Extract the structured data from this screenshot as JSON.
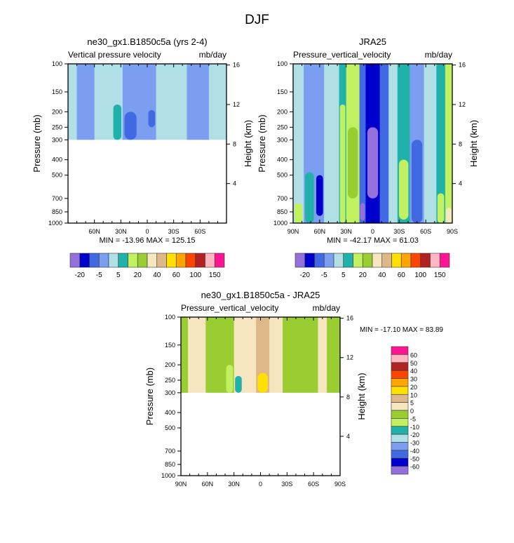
{
  "figure": {
    "title": "DJF"
  },
  "colors": {
    "levels_palette": [
      "#9370DB",
      "#0000CD",
      "#4169E1",
      "#7B9EF0",
      "#B0E0E6",
      "#20B2AA",
      "#C1F060",
      "#9ACD32",
      "#F5E6C0",
      "#DEB887",
      "#FFE000",
      "#FFA500",
      "#FF4500",
      "#B22222",
      "#FFB6C1",
      "#FF1493"
    ]
  },
  "chart_data": [
    {
      "type": "heatmap",
      "id": "model",
      "title": "ne30_gx1.B1850c5a (yrs 2-4)",
      "left_label": "Vertical pressure velocity",
      "right_label": "mb/day",
      "xlabel": "",
      "ylabel": "Pressure (mb)",
      "ylabel_right": "Height (km)",
      "x_ticks": [
        "60N",
        "30N",
        "0",
        "30S",
        "60S"
      ],
      "x_tick_values": [
        60,
        30,
        0,
        -30,
        -60
      ],
      "x_range": [
        90,
        -90
      ],
      "y_ticks": [
        "100",
        "150",
        "200",
        "250",
        "300",
        "400",
        "500",
        "700",
        "850",
        "1000"
      ],
      "y_tick_values": [
        100,
        150,
        200,
        250,
        300,
        400,
        500,
        700,
        850,
        1000
      ],
      "y_range": [
        100,
        1000
      ],
      "y_scale": "log",
      "y_right_ticks": [
        "16",
        "12",
        "8",
        "4"
      ],
      "y_right_values": [
        16,
        12,
        8,
        4
      ],
      "data_bottom_pressure": 300,
      "stats": "MIN = -13.96  MAX = 125.15",
      "colorbar": {
        "orientation": "horizontal",
        "labels": [
          "-20",
          "-5",
          "5",
          "20",
          "40",
          "60",
          "100",
          "150"
        ]
      },
      "bands": [
        {
          "x0": 90,
          "x1": 80,
          "level": 4
        },
        {
          "x0": 80,
          "x1": 60,
          "level": 3
        },
        {
          "x0": 60,
          "x1": 40,
          "level": 4
        },
        {
          "x0": 40,
          "x1": 28,
          "level": 4,
          "blob": {
            "level": 5,
            "pTop": 180,
            "pBot": 300
          }
        },
        {
          "x0": 28,
          "x1": 10,
          "level": 3,
          "blob": {
            "level": 2,
            "pTop": 200,
            "pBot": 300
          }
        },
        {
          "x0": 10,
          "x1": 0,
          "level": 3
        },
        {
          "x0": 0,
          "x1": -10,
          "level": 3,
          "blob": {
            "level": 2,
            "pTop": 195,
            "pBot": 250
          }
        },
        {
          "x0": -10,
          "x1": -45,
          "level": 4
        },
        {
          "x0": -45,
          "x1": -70,
          "level": 3
        },
        {
          "x0": -70,
          "x1": -90,
          "level": 4
        }
      ]
    },
    {
      "type": "heatmap",
      "id": "obs",
      "title": "JRA25",
      "left_label": "Pressure_vertical_velocity",
      "right_label": "mb/day",
      "xlabel": "",
      "ylabel": "Pressure (mb)",
      "ylabel_right": "Height (km)",
      "x_ticks": [
        "90N",
        "60N",
        "30N",
        "0",
        "30S",
        "60S",
        "90S"
      ],
      "x_tick_values": [
        90,
        60,
        30,
        0,
        -30,
        -60,
        -90
      ],
      "x_range": [
        90,
        -90
      ],
      "y_ticks": [
        "100",
        "150",
        "200",
        "250",
        "300",
        "400",
        "500",
        "700",
        "850",
        "1000"
      ],
      "y_tick_values": [
        100,
        150,
        200,
        250,
        300,
        400,
        500,
        700,
        850,
        1000
      ],
      "y_range": [
        100,
        1000
      ],
      "y_scale": "log",
      "y_right_ticks": [
        "16",
        "12",
        "8",
        "4"
      ],
      "y_right_values": [
        16,
        12,
        8,
        4
      ],
      "data_bottom_pressure": 1000,
      "stats": "MIN = -42.17  MAX =  61.03",
      "colorbar": {
        "orientation": "horizontal",
        "labels": [
          "-20",
          "-5",
          "5",
          "20",
          "40",
          "60",
          "100",
          "150"
        ]
      },
      "bands": [
        {
          "x0": 90,
          "x1": 78,
          "level": 4,
          "blob": {
            "level": 6,
            "pTop": 750,
            "pBot": 1000
          }
        },
        {
          "x0": 78,
          "x1": 65,
          "level": 3,
          "blob": {
            "level": 5,
            "pTop": 480,
            "pBot": 1000
          }
        },
        {
          "x0": 65,
          "x1": 55,
          "level": 3,
          "blob": {
            "level": 1,
            "pTop": 500,
            "pBot": 900
          }
        },
        {
          "x0": 55,
          "x1": 38,
          "level": 4
        },
        {
          "x0": 38,
          "x1": 30,
          "level": 5,
          "blob": {
            "level": 6,
            "pTop": 180,
            "pBot": 1000
          }
        },
        {
          "x0": 30,
          "x1": 15,
          "level": 6,
          "blob": {
            "level": 7,
            "pTop": 250,
            "pBot": 700
          }
        },
        {
          "x0": 15,
          "x1": 8,
          "level": 2,
          "blob": {
            "level": 0,
            "pTop": 750,
            "pBot": 960
          }
        },
        {
          "x0": 8,
          "x1": -8,
          "level": 1,
          "blob": {
            "level": 0,
            "pTop": 250,
            "pBot": 700
          }
        },
        {
          "x0": -8,
          "x1": -18,
          "level": 2
        },
        {
          "x0": -18,
          "x1": -28,
          "level": 4
        },
        {
          "x0": -28,
          "x1": -42,
          "level": 5,
          "blob": {
            "level": 6,
            "pTop": 400,
            "pBot": 950
          }
        },
        {
          "x0": -42,
          "x1": -58,
          "level": 3,
          "blob": {
            "level": 2,
            "pTop": 300,
            "pBot": 1000
          }
        },
        {
          "x0": -58,
          "x1": -72,
          "level": 4
        },
        {
          "x0": -72,
          "x1": -82,
          "level": 5,
          "blob": {
            "level": 6,
            "pTop": 650,
            "pBot": 1000
          }
        },
        {
          "x0": -82,
          "x1": -90,
          "level": 6,
          "blob": {
            "level": 8,
            "pTop": 800,
            "pBot": 1000
          }
        }
      ]
    },
    {
      "type": "heatmap",
      "id": "diff",
      "title": "ne30_gx1.B1850c5a - JRA25",
      "left_label": "Pressure_vertical_velocity",
      "right_label": "mb/day",
      "xlabel": "",
      "ylabel": "Pressure (mb)",
      "ylabel_right": "Height (km)",
      "x_ticks": [
        "90N",
        "60N",
        "30N",
        "0",
        "30S",
        "60S",
        "90S"
      ],
      "x_tick_values": [
        90,
        60,
        30,
        0,
        -30,
        -60,
        -90
      ],
      "x_range": [
        90,
        -90
      ],
      "y_ticks": [
        "100",
        "150",
        "200",
        "250",
        "300",
        "400",
        "500",
        "700",
        "850",
        "1000"
      ],
      "y_tick_values": [
        100,
        150,
        200,
        250,
        300,
        400,
        500,
        700,
        850,
        1000
      ],
      "y_range": [
        100,
        1000
      ],
      "y_scale": "log",
      "y_right_ticks": [
        "16",
        "12",
        "8",
        "4"
      ],
      "y_right_values": [
        16,
        12,
        8,
        4
      ],
      "data_bottom_pressure": 300,
      "stats": "MIN = -17.10  MAX =  83.89",
      "colorbar": {
        "orientation": "vertical",
        "labels": [
          "60",
          "50",
          "40",
          "30",
          "20",
          "10",
          "5",
          "0",
          "-5",
          "-10",
          "-20",
          "-30",
          "-40",
          "-50",
          "-60"
        ]
      },
      "bands": [
        {
          "x0": 90,
          "x1": 82,
          "level": 7
        },
        {
          "x0": 82,
          "x1": 62,
          "level": 8
        },
        {
          "x0": 62,
          "x1": 40,
          "level": 7
        },
        {
          "x0": 40,
          "x1": 30,
          "level": 7,
          "blob": {
            "level": 6,
            "pTop": 200,
            "pBot": 300
          }
        },
        {
          "x0": 30,
          "x1": 20,
          "level": 8,
          "blob": {
            "level": 5,
            "pTop": 235,
            "pBot": 300
          }
        },
        {
          "x0": 20,
          "x1": 5,
          "level": 8
        },
        {
          "x0": 5,
          "x1": -10,
          "level": 9,
          "blob": {
            "level": 10,
            "pTop": 225,
            "pBot": 300
          }
        },
        {
          "x0": -10,
          "x1": -25,
          "level": 8
        },
        {
          "x0": -25,
          "x1": -65,
          "level": 7
        },
        {
          "x0": -65,
          "x1": -75,
          "level": 8
        },
        {
          "x0": -75,
          "x1": -90,
          "level": 7
        }
      ]
    }
  ]
}
